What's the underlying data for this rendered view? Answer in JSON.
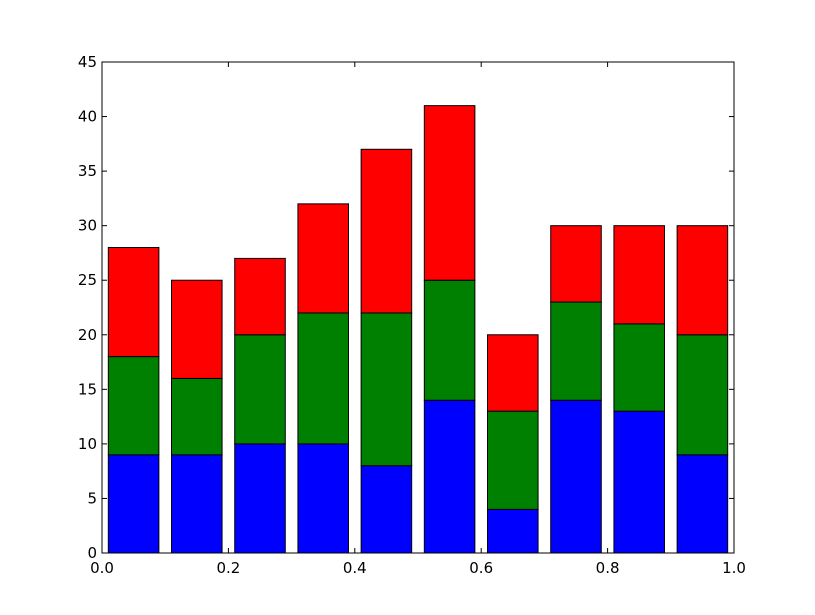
{
  "chart_data": {
    "type": "bar",
    "stacked": true,
    "title": "",
    "xlabel": "",
    "ylabel": "",
    "xlim": [
      0.0,
      1.0
    ],
    "ylim": [
      0,
      45
    ],
    "grid": false,
    "x_ticks": [
      "0.0",
      "0.2",
      "0.4",
      "0.6",
      "0.8",
      "1.0"
    ],
    "y_ticks": [
      "0",
      "5",
      "10",
      "15",
      "20",
      "25",
      "30",
      "35",
      "40",
      "45"
    ],
    "bar_width": 0.08,
    "x": [
      0.01,
      0.11,
      0.21,
      0.31,
      0.41,
      0.51,
      0.61,
      0.71,
      0.81,
      0.91
    ],
    "series": [
      {
        "color": "#0000ff",
        "values": [
          9,
          9,
          10,
          10,
          8,
          14,
          4,
          14,
          13,
          9
        ]
      },
      {
        "color": "#008000",
        "values": [
          9,
          7,
          10,
          12,
          14,
          11,
          9,
          9,
          8,
          11
        ]
      },
      {
        "color": "#ff0000",
        "values": [
          10,
          9,
          7,
          10,
          15,
          16,
          7,
          7,
          9,
          10
        ]
      }
    ]
  }
}
